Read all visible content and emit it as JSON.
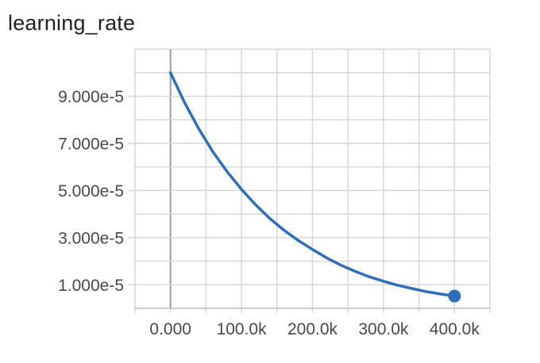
{
  "page": {
    "title": "learning_rate"
  },
  "colors": {
    "background": "#ffffff",
    "title_text": "#212121",
    "tick_label": "#45494e",
    "grid": "#d7d7d7",
    "zero_line": "#9b9b9b",
    "axis_baseline": "#bdbdbd",
    "line": "#2f6fb7"
  },
  "chart_data": {
    "type": "line",
    "title": "learning_rate",
    "xlabel": "",
    "ylabel": "",
    "grid": true,
    "legend": "none",
    "x_range": [
      -50000,
      450000
    ],
    "y_range": [
      0,
      0.00011
    ],
    "x_grid_interval": 50000,
    "y_grid_interval": 1e-05,
    "x_ticks": [
      {
        "value": 0,
        "label": "0.000"
      },
      {
        "value": 100000,
        "label": "100.0k"
      },
      {
        "value": 200000,
        "label": "200.0k"
      },
      {
        "value": 300000,
        "label": "300.0k"
      },
      {
        "value": 400000,
        "label": "400.0k"
      }
    ],
    "y_ticks": [
      {
        "value": 1e-05,
        "label": "1.000e-5"
      },
      {
        "value": 3e-05,
        "label": "3.000e-5"
      },
      {
        "value": 5e-05,
        "label": "5.000e-5"
      },
      {
        "value": 7e-05,
        "label": "7.000e-5"
      },
      {
        "value": 9e-05,
        "label": "9.000e-5"
      }
    ],
    "series": [
      {
        "name": "learning_rate",
        "color": "#2f6fb7",
        "line_width": 3.5,
        "end_marker": true,
        "end_marker_radius": 8,
        "points": [
          {
            "step": 0,
            "value": 0.0001
          },
          {
            "step": 20000,
            "value": 8.72e-05
          },
          {
            "step": 40000,
            "value": 7.61e-05
          },
          {
            "step": 60000,
            "value": 6.63e-05
          },
          {
            "step": 80000,
            "value": 5.79e-05
          },
          {
            "step": 100000,
            "value": 5.05e-05
          },
          {
            "step": 120000,
            "value": 4.39e-05
          },
          {
            "step": 140000,
            "value": 3.81e-05
          },
          {
            "step": 160000,
            "value": 3.31e-05
          },
          {
            "step": 180000,
            "value": 2.88e-05
          },
          {
            "step": 200000,
            "value": 2.5e-05
          },
          {
            "step": 220000,
            "value": 2.14e-05
          },
          {
            "step": 240000,
            "value": 1.83e-05
          },
          {
            "step": 260000,
            "value": 1.57e-05
          },
          {
            "step": 280000,
            "value": 1.34e-05
          },
          {
            "step": 300000,
            "value": 1.15e-05
          },
          {
            "step": 320000,
            "value": 9.8e-06
          },
          {
            "step": 340000,
            "value": 8.4e-06
          },
          {
            "step": 360000,
            "value": 7.1e-06
          },
          {
            "step": 380000,
            "value": 6.1e-06
          },
          {
            "step": 400000,
            "value": 5.2e-06
          }
        ]
      }
    ]
  }
}
